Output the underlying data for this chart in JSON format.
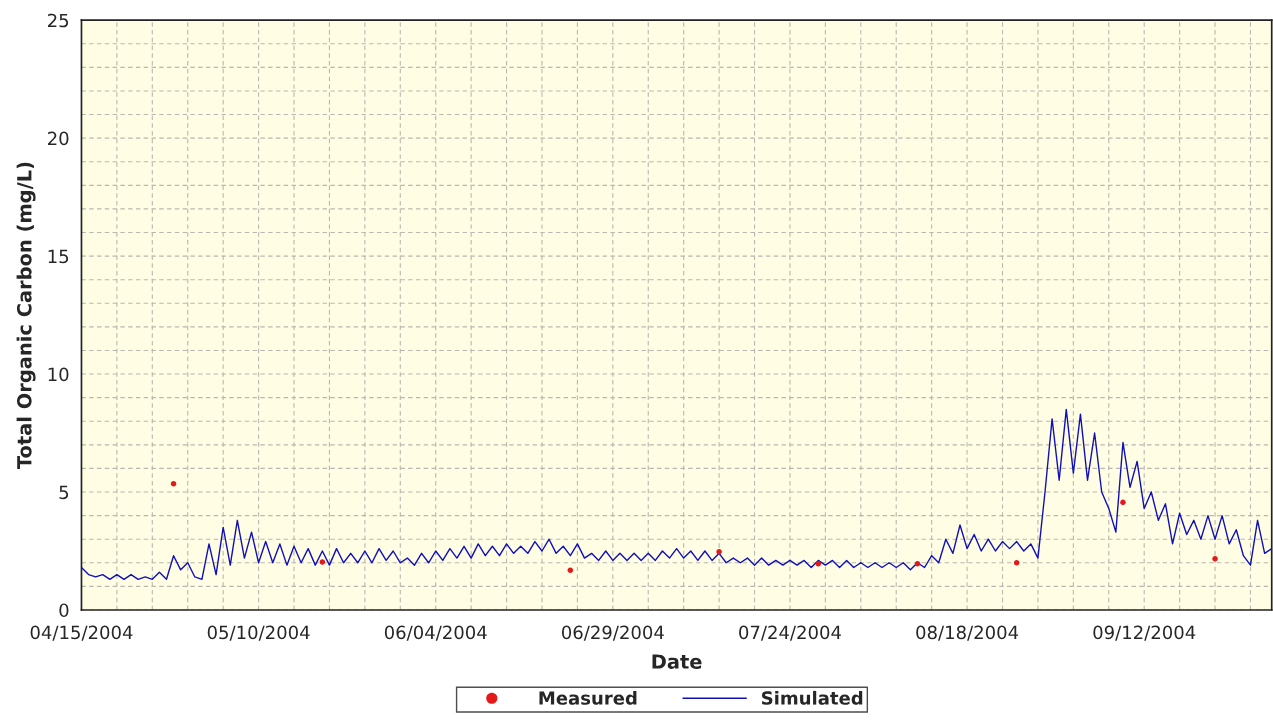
{
  "chart_data": {
    "type": "line",
    "xlabel": "Date",
    "ylabel": "Total Organic Carbon (mg/L)",
    "xlim": [
      "2004-04-15",
      "2004-09-30"
    ],
    "xticks": [
      {
        "value": "2004-04-15",
        "label": "04/15/2004"
      },
      {
        "value": "2004-04-20",
        "label": null
      },
      {
        "value": "2004-04-25",
        "label": null
      },
      {
        "value": "2004-04-30",
        "label": null
      },
      {
        "value": "2004-05-05",
        "label": null
      },
      {
        "value": "2004-05-10",
        "label": "05/10/2004"
      },
      {
        "value": "2004-05-15",
        "label": null
      },
      {
        "value": "2004-05-20",
        "label": null
      },
      {
        "value": "2004-05-25",
        "label": null
      },
      {
        "value": "2004-05-30",
        "label": null
      },
      {
        "value": "2004-06-04",
        "label": "06/04/2004"
      },
      {
        "value": "2004-06-09",
        "label": null
      },
      {
        "value": "2004-06-14",
        "label": null
      },
      {
        "value": "2004-06-19",
        "label": null
      },
      {
        "value": "2004-06-24",
        "label": null
      },
      {
        "value": "2004-06-29",
        "label": "06/29/2004"
      },
      {
        "value": "2004-07-04",
        "label": null
      },
      {
        "value": "2004-07-09",
        "label": null
      },
      {
        "value": "2004-07-14",
        "label": null
      },
      {
        "value": "2004-07-19",
        "label": null
      },
      {
        "value": "2004-07-24",
        "label": "07/24/2004"
      },
      {
        "value": "2004-07-29",
        "label": null
      },
      {
        "value": "2004-08-03",
        "label": null
      },
      {
        "value": "2004-08-08",
        "label": null
      },
      {
        "value": "2004-08-13",
        "label": null
      },
      {
        "value": "2004-08-18",
        "label": "08/18/2004"
      },
      {
        "value": "2004-08-23",
        "label": null
      },
      {
        "value": "2004-08-28",
        "label": null
      },
      {
        "value": "2004-09-02",
        "label": null
      },
      {
        "value": "2004-09-07",
        "label": null
      },
      {
        "value": "2004-09-12",
        "label": "09/12/2004"
      },
      {
        "value": "2004-09-17",
        "label": null
      },
      {
        "value": "2004-09-22",
        "label": null
      },
      {
        "value": "2004-09-27",
        "label": null
      }
    ],
    "ylim": [
      0,
      25
    ],
    "yticks": [
      0,
      {
        "value": 1,
        "label": null
      },
      {
        "value": 2,
        "label": null
      },
      {
        "value": 3,
        "label": null
      },
      {
        "value": 4,
        "label": null
      },
      5,
      {
        "value": 6,
        "label": null
      },
      {
        "value": 7,
        "label": null
      },
      {
        "value": 8,
        "label": null
      },
      {
        "value": 9,
        "label": null
      },
      10,
      {
        "value": 11,
        "label": null
      },
      {
        "value": 12,
        "label": null
      },
      {
        "value": 13,
        "label": null
      },
      {
        "value": 14,
        "label": null
      },
      15,
      {
        "value": 16,
        "label": null
      },
      {
        "value": 17,
        "label": null
      },
      {
        "value": 18,
        "label": null
      },
      {
        "value": 19,
        "label": null
      },
      20,
      {
        "value": 21,
        "label": null
      },
      {
        "value": 22,
        "label": null
      },
      {
        "value": 23,
        "label": null
      },
      {
        "value": 24,
        "label": null
      },
      25
    ],
    "grid": true,
    "legend": "bottom",
    "series": [
      {
        "name": "Measured",
        "type": "scatter",
        "marker": "circle",
        "color": "#e31a1c",
        "x": [
          "2004-04-28",
          "2004-05-19",
          "2004-06-23",
          "2004-07-14",
          "2004-07-28",
          "2004-08-11",
          "2004-08-25",
          "2004-09-09",
          "2004-09-22"
        ],
        "values": [
          5.35,
          2.03,
          1.68,
          2.47,
          1.96,
          1.96,
          2.0,
          4.56,
          2.17
        ]
      },
      {
        "name": "Simulated",
        "line_style": "solid",
        "color": "#1010b8",
        "x": [
          "2004-04-15",
          "2004-04-16",
          "2004-04-17",
          "2004-04-18",
          "2004-04-19",
          "2004-04-20",
          "2004-04-21",
          "2004-04-22",
          "2004-04-23",
          "2004-04-24",
          "2004-04-25",
          "2004-04-26",
          "2004-04-27",
          "2004-04-28",
          "2004-04-29",
          "2004-04-30",
          "2004-05-01",
          "2004-05-02",
          "2004-05-03",
          "2004-05-04",
          "2004-05-05",
          "2004-05-06",
          "2004-05-07",
          "2004-05-08",
          "2004-05-09",
          "2004-05-10",
          "2004-05-11",
          "2004-05-12",
          "2004-05-13",
          "2004-05-14",
          "2004-05-15",
          "2004-05-16",
          "2004-05-17",
          "2004-05-18",
          "2004-05-19",
          "2004-05-20",
          "2004-05-21",
          "2004-05-22",
          "2004-05-23",
          "2004-05-24",
          "2004-05-25",
          "2004-05-26",
          "2004-05-27",
          "2004-05-28",
          "2004-05-29",
          "2004-05-30",
          "2004-05-31",
          "2004-06-01",
          "2004-06-02",
          "2004-06-03",
          "2004-06-04",
          "2004-06-05",
          "2004-06-06",
          "2004-06-07",
          "2004-06-08",
          "2004-06-09",
          "2004-06-10",
          "2004-06-11",
          "2004-06-12",
          "2004-06-13",
          "2004-06-14",
          "2004-06-15",
          "2004-06-16",
          "2004-06-17",
          "2004-06-18",
          "2004-06-19",
          "2004-06-20",
          "2004-06-21",
          "2004-06-22",
          "2004-06-23",
          "2004-06-24",
          "2004-06-25",
          "2004-06-26",
          "2004-06-27",
          "2004-06-28",
          "2004-06-29",
          "2004-06-30",
          "2004-07-01",
          "2004-07-02",
          "2004-07-03",
          "2004-07-04",
          "2004-07-05",
          "2004-07-06",
          "2004-07-07",
          "2004-07-08",
          "2004-07-09",
          "2004-07-10",
          "2004-07-11",
          "2004-07-12",
          "2004-07-13",
          "2004-07-14",
          "2004-07-15",
          "2004-07-16",
          "2004-07-17",
          "2004-07-18",
          "2004-07-19",
          "2004-07-20",
          "2004-07-21",
          "2004-07-22",
          "2004-07-23",
          "2004-07-24",
          "2004-07-25",
          "2004-07-26",
          "2004-07-27",
          "2004-07-28",
          "2004-07-29",
          "2004-07-30",
          "2004-07-31",
          "2004-08-01",
          "2004-08-02",
          "2004-08-03",
          "2004-08-04",
          "2004-08-05",
          "2004-08-06",
          "2004-08-07",
          "2004-08-08",
          "2004-08-09",
          "2004-08-10",
          "2004-08-11",
          "2004-08-12",
          "2004-08-13",
          "2004-08-14",
          "2004-08-15",
          "2004-08-16",
          "2004-08-17",
          "2004-08-18",
          "2004-08-19",
          "2004-08-20",
          "2004-08-21",
          "2004-08-22",
          "2004-08-23",
          "2004-08-24",
          "2004-08-25",
          "2004-08-26",
          "2004-08-27",
          "2004-08-28",
          "2004-08-29",
          "2004-08-30",
          "2004-08-31",
          "2004-09-01",
          "2004-09-02",
          "2004-09-03",
          "2004-09-04",
          "2004-09-05",
          "2004-09-06",
          "2004-09-07",
          "2004-09-08",
          "2004-09-09",
          "2004-09-10",
          "2004-09-11",
          "2004-09-12",
          "2004-09-13",
          "2004-09-14",
          "2004-09-15",
          "2004-09-16",
          "2004-09-17",
          "2004-09-18",
          "2004-09-19",
          "2004-09-20",
          "2004-09-21",
          "2004-09-22",
          "2004-09-23",
          "2004-09-24",
          "2004-09-25",
          "2004-09-26",
          "2004-09-27",
          "2004-09-28",
          "2004-09-29",
          "2004-09-30"
        ],
        "values": [
          1.8,
          1.5,
          1.4,
          1.5,
          1.3,
          1.5,
          1.3,
          1.5,
          1.3,
          1.4,
          1.3,
          1.6,
          1.3,
          2.3,
          1.7,
          2.0,
          1.4,
          1.3,
          2.8,
          1.5,
          3.5,
          1.9,
          3.8,
          2.2,
          3.3,
          2.0,
          2.9,
          2.0,
          2.8,
          1.9,
          2.7,
          2.0,
          2.6,
          1.9,
          2.5,
          1.9,
          2.6,
          2.0,
          2.4,
          2.0,
          2.5,
          2.0,
          2.6,
          2.1,
          2.5,
          2.0,
          2.2,
          1.9,
          2.4,
          2.0,
          2.5,
          2.1,
          2.6,
          2.2,
          2.7,
          2.2,
          2.8,
          2.3,
          2.7,
          2.3,
          2.8,
          2.4,
          2.7,
          2.4,
          2.9,
          2.5,
          3.0,
          2.4,
          2.7,
          2.3,
          2.8,
          2.2,
          2.4,
          2.1,
          2.5,
          2.1,
          2.4,
          2.1,
          2.4,
          2.1,
          2.4,
          2.1,
          2.5,
          2.2,
          2.6,
          2.2,
          2.5,
          2.1,
          2.5,
          2.1,
          2.4,
          2.0,
          2.2,
          2.0,
          2.2,
          1.9,
          2.2,
          1.9,
          2.1,
          1.9,
          2.1,
          1.9,
          2.1,
          1.8,
          2.1,
          1.9,
          2.1,
          1.8,
          2.1,
          1.8,
          2.0,
          1.8,
          2.0,
          1.8,
          2.0,
          1.8,
          2.0,
          1.7,
          2.0,
          1.8,
          2.3,
          2.0,
          3.0,
          2.4,
          3.6,
          2.6,
          3.2,
          2.5,
          3.0,
          2.5,
          2.9,
          2.6,
          2.9,
          2.5,
          2.8,
          2.2,
          5.0,
          8.1,
          5.5,
          8.5,
          5.8,
          8.3,
          5.5,
          7.5,
          5.0,
          4.3,
          3.3,
          7.1,
          5.2,
          6.3,
          4.3,
          5.0,
          3.8,
          4.5,
          2.8,
          4.1,
          3.2,
          3.8,
          3.0,
          4.0,
          3.0,
          4.0,
          2.8,
          3.4,
          2.3,
          1.9,
          3.8,
          2.4,
          2.6
        ]
      }
    ]
  }
}
